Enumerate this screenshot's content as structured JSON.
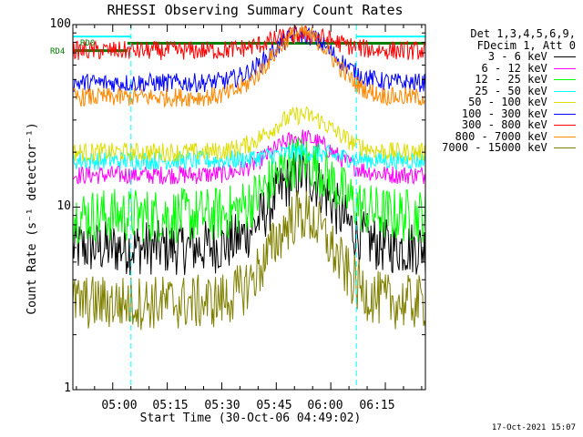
{
  "chart_data": {
    "type": "line",
    "title": "RHESSI Observing Summary Count Rates",
    "xlabel": "Start Time (30-Oct-06 04:49:02)",
    "ylabel": "Count Rate (s⁻¹ detector⁻¹)",
    "y_scale": "log",
    "ylim": [
      1,
      100
    ],
    "yticks": [
      "1",
      "10",
      "100"
    ],
    "xlim_minutes_after_start": [
      0,
      97
    ],
    "xticks": [
      "05:00",
      "05:15",
      "05:30",
      "05:45",
      "06:00",
      "06:15"
    ],
    "legend_header": [
      "Det 1,3,4,5,6,9,",
      "FDecim 1, Att 0"
    ],
    "attenuator_states": [
      {
        "label": "RD0",
        "color": "#00ffff"
      },
      {
        "label": "RD4",
        "color": "#008000"
      }
    ],
    "series": [
      {
        "name": "3 - 6 keV",
        "color": "#000000",
        "base": 6,
        "peak": 15
      },
      {
        "name": "6 - 12 keV",
        "color": "#ff00ff",
        "base": 15,
        "peak": 24
      },
      {
        "name": "12 - 25 keV",
        "color": "#00ff00",
        "base": 9,
        "peak": 18
      },
      {
        "name": "25 - 50 keV",
        "color": "#00ffff",
        "base": 18,
        "peak": 20
      },
      {
        "name": "50 - 100 keV",
        "color": "#dddd00",
        "base": 20,
        "peak": 32
      },
      {
        "name": "100 - 300 keV",
        "color": "#0000ff",
        "base": 48,
        "peak": 88
      },
      {
        "name": "300 - 800 keV",
        "color": "#ff0000",
        "base": 72,
        "peak": 88
      },
      {
        "name": "800 - 7000 keV",
        "color": "#ff8800",
        "base": 40,
        "peak": 90
      },
      {
        "name": "7000 - 15000 keV",
        "color": "#808000",
        "base": 3,
        "peak": 9
      }
    ],
    "grid": false
  },
  "footer": "17-Oct-2021 15:07"
}
